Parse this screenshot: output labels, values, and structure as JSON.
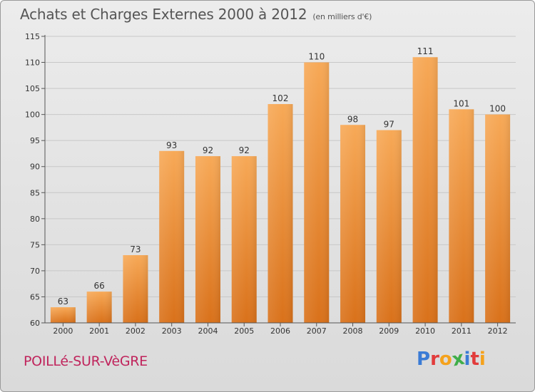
{
  "title": "Achats et Charges Externes 2000 à 2012",
  "subtitle": "(en milliers d'€)",
  "commune": "POILLé-SUR-VèGRE",
  "logo": {
    "letters": [
      {
        "ch": "P",
        "color": "#3a7bd5"
      },
      {
        "ch": "r",
        "color": "#e23b3b"
      },
      {
        "ch": "o",
        "color": "#f5a21c"
      },
      {
        "ch": "x",
        "color": "#3fae49"
      },
      {
        "ch": "i",
        "color": "#3a7bd5"
      },
      {
        "ch": "t",
        "color": "#e23b3b"
      },
      {
        "ch": "i",
        "color": "#f5a21c"
      }
    ]
  },
  "colors": {
    "bar_top": "#f7a957",
    "bar_bottom": "#d9711a",
    "grid": "#c8c8c8",
    "axis": "#555555",
    "text": "#333333"
  },
  "chart_data": {
    "type": "bar",
    "categories": [
      "2000",
      "2001",
      "2002",
      "2003",
      "2004",
      "2005",
      "2006",
      "2007",
      "2008",
      "2009",
      "2010",
      "2011",
      "2012"
    ],
    "values": [
      63,
      66,
      73,
      93,
      92,
      92,
      102,
      110,
      98,
      97,
      111,
      101,
      100
    ],
    "ylim": [
      60,
      115
    ],
    "yticks": [
      60,
      65,
      70,
      75,
      80,
      85,
      90,
      95,
      100,
      105,
      110,
      115
    ],
    "grid": true
  }
}
